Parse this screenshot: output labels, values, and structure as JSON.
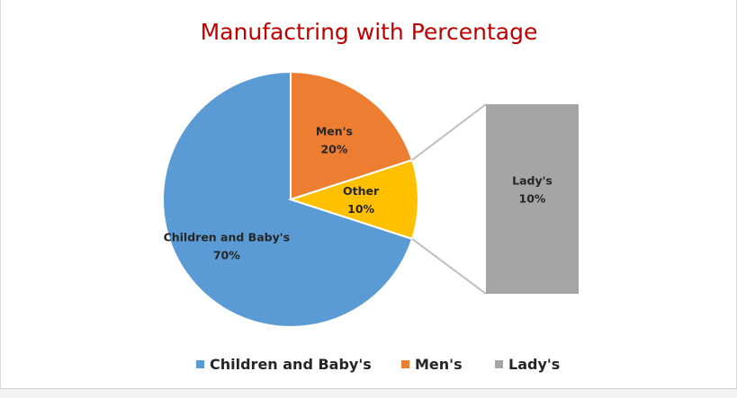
{
  "chart_data": {
    "type": "pie",
    "subtype": "bar-of-pie",
    "title": "Manufactring with Percentage",
    "slices": [
      {
        "label": "Children and Baby's",
        "value": 70,
        "value_label": "70%",
        "color": "#5b9bd5"
      },
      {
        "label": "Men's",
        "value": 20,
        "value_label": "20%",
        "color": "#ed7d31"
      },
      {
        "label": "Other",
        "value": 10,
        "value_label": "10%",
        "color": "#ffc000"
      }
    ],
    "secondary": [
      {
        "label": "Lady's",
        "value": 10,
        "value_label": "10%",
        "color": "#a5a5a5"
      }
    ],
    "legend": {
      "position": "bottom",
      "items": [
        {
          "label": "Children and Baby's",
          "color": "#5b9bd5"
        },
        {
          "label": "Men's",
          "color": "#ed7d31"
        },
        {
          "label": "Lady's",
          "color": "#a5a5a5"
        }
      ]
    },
    "connector_color": "#bfbfbf"
  }
}
